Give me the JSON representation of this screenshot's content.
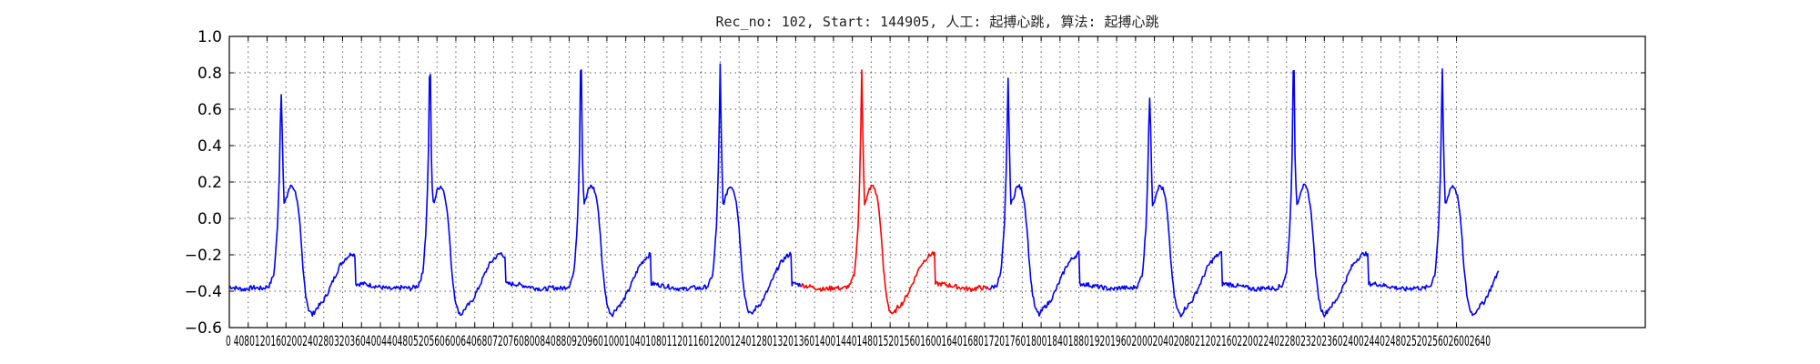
{
  "chart_data": {
    "type": "line",
    "title": "Rec_no: 102, Start: 144905, 人工: 起搏心跳, 算法: 起搏心跳",
    "xlabel": "",
    "ylabel": "",
    "xlim": [
      0,
      3000
    ],
    "ylim": [
      -0.6,
      1.0
    ],
    "yticks": [
      1.0,
      0.8,
      0.6,
      0.4,
      0.2,
      0.0,
      -0.2,
      -0.4,
      -0.6
    ],
    "ytick_labels": [
      "1.0",
      "0.8",
      "0.6",
      "0.4",
      "0.2",
      "0.0",
      "−0.2",
      "−0.4",
      "−0.6"
    ],
    "xticks": [
      0,
      40,
      80,
      120,
      160,
      200,
      240,
      280,
      320,
      360,
      400,
      440,
      480,
      520,
      560,
      600,
      640,
      680,
      720,
      760,
      800,
      840,
      880,
      920,
      960,
      1000,
      1040,
      1080,
      1120,
      1160,
      1200,
      1240,
      1280,
      1320,
      1360,
      1400,
      1440,
      1480,
      1520,
      1560,
      1600,
      1640,
      1680,
      1720,
      1760,
      1800,
      1840,
      1880,
      1920,
      1960,
      2000,
      2040,
      2080,
      2120,
      2160,
      2200,
      2240,
      2280,
      2320,
      2360,
      2400,
      2440,
      2480,
      2520,
      2560,
      2600
    ],
    "xtick_label_text": "0 4080120160200240280320360400440480520560600640680720760800840880920960100010401080112011601200124012801320136014001440148015201560160016401680172017601800184018801920196020002040208021202160220022402280232023602400244024802520256026002640",
    "grid": true,
    "series_colors": {
      "base": "#0000ff",
      "highlight": "#ff0000"
    },
    "highlight_range": [
      1210,
      1610
    ],
    "beat_template": [
      [
        -140,
        -0.36
      ],
      [
        -120,
        -0.37
      ],
      [
        -100,
        -0.38
      ],
      [
        -80,
        -0.39
      ],
      [
        -60,
        -0.38
      ],
      [
        -40,
        -0.385
      ],
      [
        -25,
        -0.37
      ],
      [
        -15,
        -0.3
      ],
      [
        -8,
        -0.05
      ],
      [
        -4,
        0.25
      ],
      [
        0,
        0.78
      ],
      [
        3,
        0.35
      ],
      [
        6,
        0.08
      ],
      [
        10,
        0.1
      ],
      [
        16,
        0.16
      ],
      [
        22,
        0.18
      ],
      [
        28,
        0.16
      ],
      [
        34,
        0.1
      ],
      [
        40,
        -0.05
      ],
      [
        46,
        -0.28
      ],
      [
        52,
        -0.42
      ],
      [
        58,
        -0.5
      ],
      [
        66,
        -0.53
      ],
      [
        76,
        -0.49
      ],
      [
        88,
        -0.46
      ],
      [
        100,
        -0.4
      ],
      [
        112,
        -0.33
      ],
      [
        124,
        -0.26
      ],
      [
        136,
        -0.22
      ],
      [
        150,
        -0.19
      ],
      [
        164,
        -0.22
      ],
      [
        180,
        -0.26
      ],
      [
        200,
        -0.29
      ],
      [
        220,
        -0.31
      ],
      [
        240,
        -0.32
      ],
      [
        260,
        -0.33
      ],
      [
        280,
        -0.34
      ],
      [
        300,
        -0.345
      ]
    ],
    "beats": [
      {
        "x": 110,
        "peak": 0.69
      },
      {
        "x": 425,
        "peak": 0.78
      },
      {
        "x": 745,
        "peak": 0.82
      },
      {
        "x": 1040,
        "peak": 0.84
      },
      {
        "x": 1340,
        "peak": 0.82
      },
      {
        "x": 1650,
        "peak": 0.77
      },
      {
        "x": 1950,
        "peak": 0.66
      },
      {
        "x": 2255,
        "peak": 0.8
      },
      {
        "x": 2570,
        "peak": 0.81
      }
    ],
    "x_end": 2690
  }
}
